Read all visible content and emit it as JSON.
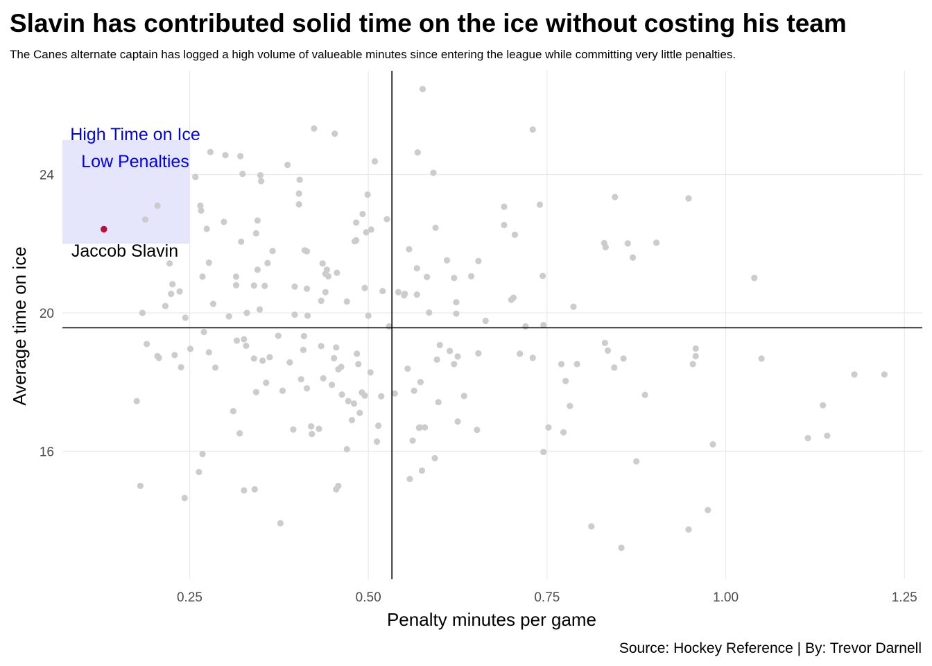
{
  "chart_data": {
    "type": "scatter",
    "title": "Slavin has contributed solid time on the ice without costing his team",
    "subtitle": "The Canes alternate captain has logged a high volume of valueable minutes since entering the league while committing very little penalties.",
    "xlabel": "Penalty minutes per game",
    "ylabel": "Average time on ice",
    "caption": "Source: Hockey Reference | By: Trevor Darnell",
    "xlim": [
      0.072,
      1.275
    ],
    "ylim": [
      12.3,
      27.0
    ],
    "x_ticks": [
      0.25,
      0.5,
      0.75,
      1.0
    ],
    "x_tick_labels": [
      "0.25",
      "0.50",
      "0.75",
      "1.00"
    ],
    "x_ticks_extra": [
      1.25
    ],
    "x_tick_labels_extra": [
      "1.25"
    ],
    "y_ticks": [
      16,
      20,
      24
    ],
    "y_tick_labels": [
      "16",
      "20",
      "24"
    ],
    "grid": true,
    "reference_lines": {
      "vertical_x": 0.533,
      "horizontal_y": 19.57
    },
    "region": {
      "x": [
        0.072,
        0.25
      ],
      "y": [
        22.0,
        25.0
      ],
      "labels": [
        "High Time on Ice",
        "Low Penalties"
      ],
      "color": "#0000ee",
      "fill": "#e5e5fb"
    },
    "highlight": {
      "name": "Jaccob Slavin",
      "x": 0.13,
      "y": 22.42,
      "color": "#b5123e"
    },
    "point_color": "#cccccc",
    "points": [
      [
        0.176,
        17.45
      ],
      [
        0.181,
        15.0
      ],
      [
        0.184,
        20.0
      ],
      [
        0.19,
        19.1
      ],
      [
        0.205,
        18.75
      ],
      [
        0.207,
        18.7
      ],
      [
        0.205,
        23.1
      ],
      [
        0.188,
        22.7
      ],
      [
        0.216,
        20.2
      ],
      [
        0.222,
        21.43
      ],
      [
        0.224,
        20.55
      ],
      [
        0.226,
        20.83
      ],
      [
        0.229,
        18.78
      ],
      [
        0.236,
        20.62
      ],
      [
        0.238,
        18.43
      ],
      [
        0.244,
        19.86
      ],
      [
        0.243,
        14.65
      ],
      [
        0.251,
        18.96
      ],
      [
        0.258,
        23.93
      ],
      [
        0.263,
        15.4
      ],
      [
        0.265,
        23.1
      ],
      [
        0.266,
        22.96
      ],
      [
        0.268,
        15.92
      ],
      [
        0.268,
        21.05
      ],
      [
        0.27,
        19.45
      ],
      [
        0.274,
        22.43
      ],
      [
        0.277,
        18.86
      ],
      [
        0.277,
        21.45
      ],
      [
        0.279,
        24.65
      ],
      [
        0.283,
        20.26
      ],
      [
        0.286,
        18.42
      ],
      [
        0.298,
        22.63
      ],
      [
        0.3,
        24.56
      ],
      [
        0.305,
        19.9
      ],
      [
        0.311,
        17.16
      ],
      [
        0.315,
        21.05
      ],
      [
        0.315,
        20.8
      ],
      [
        0.316,
        19.2
      ],
      [
        0.32,
        16.52
      ],
      [
        0.321,
        24.53
      ],
      [
        0.322,
        22.06
      ],
      [
        0.324,
        24.02
      ],
      [
        0.326,
        14.87
      ],
      [
        0.326,
        19.24
      ],
      [
        0.329,
        19.05
      ],
      [
        0.33,
        20.0
      ],
      [
        0.34,
        18.68
      ],
      [
        0.34,
        20.79
      ],
      [
        0.341,
        14.9
      ],
      [
        0.343,
        17.71
      ],
      [
        0.343,
        22.3
      ],
      [
        0.345,
        22.67
      ],
      [
        0.345,
        21.25
      ],
      [
        0.348,
        20.1
      ],
      [
        0.349,
        23.98
      ],
      [
        0.352,
        18.62
      ],
      [
        0.355,
        20.78
      ],
      [
        0.35,
        23.81
      ],
      [
        0.357,
        17.98
      ],
      [
        0.359,
        21.44
      ],
      [
        0.362,
        18.72
      ],
      [
        0.366,
        21.79
      ],
      [
        0.374,
        19.34
      ],
      [
        0.377,
        13.92
      ],
      [
        0.38,
        17.75
      ],
      [
        0.387,
        24.28
      ],
      [
        0.39,
        18.57
      ],
      [
        0.395,
        16.63
      ],
      [
        0.397,
        19.95
      ],
      [
        0.397,
        20.76
      ],
      [
        0.403,
        23.45
      ],
      [
        0.403,
        23.14
      ],
      [
        0.404,
        23.85
      ],
      [
        0.406,
        18.08
      ],
      [
        0.409,
        18.93
      ],
      [
        0.41,
        19.33
      ],
      [
        0.411,
        21.81
      ],
      [
        0.414,
        21.78
      ],
      [
        0.414,
        20.7
      ],
      [
        0.414,
        17.82
      ],
      [
        0.415,
        19.92
      ],
      [
        0.42,
        16.72
      ],
      [
        0.421,
        16.5
      ],
      [
        0.424,
        25.33
      ],
      [
        0.431,
        16.65
      ],
      [
        0.434,
        19.04
      ],
      [
        0.434,
        20.35
      ],
      [
        0.436,
        21.43
      ],
      [
        0.437,
        18.11
      ],
      [
        0.44,
        21.13
      ],
      [
        0.44,
        20.6
      ],
      [
        0.442,
        21.25
      ],
      [
        0.444,
        21.06
      ],
      [
        0.449,
        17.92
      ],
      [
        0.452,
        18.69
      ],
      [
        0.455,
        19.0
      ],
      [
        0.453,
        25.18
      ],
      [
        0.455,
        14.9
      ],
      [
        0.456,
        21.16
      ],
      [
        0.458,
        18.37
      ],
      [
        0.458,
        15.0
      ],
      [
        0.462,
        18.44
      ],
      [
        0.463,
        17.64
      ],
      [
        0.47,
        16.06
      ],
      [
        0.47,
        20.33
      ],
      [
        0.472,
        17.45
      ],
      [
        0.477,
        16.9
      ],
      [
        0.48,
        17.38
      ],
      [
        0.481,
        22.07
      ],
      [
        0.483,
        22.1
      ],
      [
        0.483,
        22.61
      ],
      [
        0.484,
        18.82
      ],
      [
        0.486,
        18.52
      ],
      [
        0.488,
        17.11
      ],
      [
        0.491,
        17.7
      ],
      [
        0.492,
        22.86
      ],
      [
        0.495,
        17.61
      ],
      [
        0.495,
        20.72
      ],
      [
        0.497,
        22.33
      ],
      [
        0.499,
        23.42
      ],
      [
        0.5,
        19.92
      ],
      [
        0.503,
        18.28
      ],
      [
        0.504,
        22.41
      ],
      [
        0.509,
        24.38
      ],
      [
        0.512,
        16.28
      ],
      [
        0.514,
        16.74
      ],
      [
        0.518,
        17.59
      ],
      [
        0.52,
        20.63
      ],
      [
        0.526,
        22.71
      ],
      [
        0.529,
        19.61
      ],
      [
        0.537,
        17.67
      ],
      [
        0.542,
        20.6
      ],
      [
        0.55,
        20.51
      ],
      [
        0.551,
        20.55
      ],
      [
        0.555,
        18.39
      ],
      [
        0.557,
        21.84
      ],
      [
        0.558,
        15.2
      ],
      [
        0.562,
        16.31
      ],
      [
        0.564,
        17.75
      ],
      [
        0.568,
        21.29
      ],
      [
        0.568,
        20.53
      ],
      [
        0.569,
        24.64
      ],
      [
        0.571,
        16.68
      ],
      [
        0.572,
        16.69
      ],
      [
        0.573,
        18.0
      ],
      [
        0.575,
        15.44
      ],
      [
        0.576,
        26.47
      ],
      [
        0.579,
        16.69
      ],
      [
        0.582,
        21.04
      ],
      [
        0.585,
        20.01
      ],
      [
        0.591,
        24.05
      ],
      [
        0.593,
        15.8
      ],
      [
        0.594,
        22.46
      ],
      [
        0.596,
        18.65
      ],
      [
        0.598,
        17.42
      ],
      [
        0.6,
        19.07
      ],
      [
        0.61,
        21.52
      ],
      [
        0.614,
        18.9
      ],
      [
        0.62,
        21.01
      ],
      [
        0.62,
        18.52
      ],
      [
        0.623,
        20.31
      ],
      [
        0.623,
        19.98
      ],
      [
        0.625,
        18.74
      ],
      [
        0.625,
        16.86
      ],
      [
        0.634,
        17.6
      ],
      [
        0.644,
        21.06
      ],
      [
        0.652,
        16.62
      ],
      [
        0.654,
        18.83
      ],
      [
        0.654,
        21.5
      ],
      [
        0.664,
        19.77
      ],
      [
        0.69,
        22.54
      ],
      [
        0.69,
        23.07
      ],
      [
        0.7,
        20.38
      ],
      [
        0.703,
        20.44
      ],
      [
        0.705,
        22.26
      ],
      [
        0.712,
        18.82
      ],
      [
        0.72,
        19.61
      ],
      [
        0.73,
        18.7
      ],
      [
        0.73,
        25.3
      ],
      [
        0.74,
        23.13
      ],
      [
        0.744,
        21.07
      ],
      [
        0.745,
        19.65
      ],
      [
        0.745,
        15.98
      ],
      [
        0.752,
        16.69
      ],
      [
        0.77,
        18.52
      ],
      [
        0.773,
        16.55
      ],
      [
        0.776,
        18.03
      ],
      [
        0.782,
        17.31
      ],
      [
        0.787,
        20.18
      ],
      [
        0.792,
        18.52
      ],
      [
        0.812,
        13.83
      ],
      [
        0.832,
        21.9
      ],
      [
        0.83,
        22.02
      ],
      [
        0.831,
        19.13
      ],
      [
        0.835,
        18.91
      ],
      [
        0.844,
        18.42
      ],
      [
        0.845,
        23.35
      ],
      [
        0.854,
        13.21
      ],
      [
        0.857,
        18.68
      ],
      [
        0.863,
        22.01
      ],
      [
        0.87,
        21.6
      ],
      [
        0.875,
        15.71
      ],
      [
        0.887,
        17.63
      ],
      [
        0.903,
        22.03
      ],
      [
        0.948,
        23.31
      ],
      [
        0.948,
        13.74
      ],
      [
        0.954,
        18.52
      ],
      [
        0.958,
        18.75
      ],
      [
        0.958,
        18.97
      ],
      [
        0.975,
        14.3
      ],
      [
        0.982,
        16.2
      ],
      [
        1.04,
        21.01
      ],
      [
        1.05,
        18.68
      ],
      [
        1.115,
        16.38
      ],
      [
        1.136,
        17.33
      ],
      [
        1.142,
        16.45
      ],
      [
        1.18,
        18.22
      ],
      [
        1.222,
        18.22
      ]
    ]
  }
}
